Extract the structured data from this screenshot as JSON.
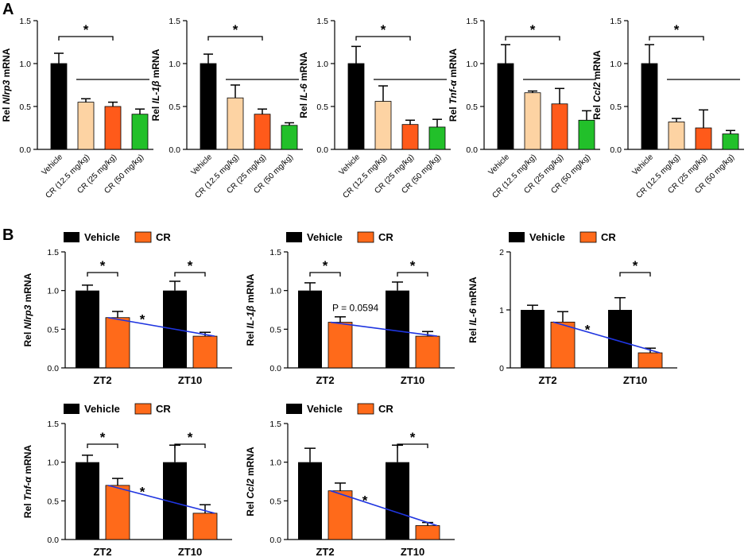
{
  "panels": [
    {
      "letter": "A"
    },
    {
      "letter": "B"
    }
  ],
  "legend": {
    "vehicle_label": "Vehicle",
    "cr_label": "CR"
  },
  "colors": {
    "vehicle": "#000000",
    "cr_12_5": "#FDD3A3",
    "cr_25": "#FF5A1A",
    "cr_50": "#22C02A",
    "cr": "#FF6A1A",
    "trend": "#1F35E0",
    "error": "#000000"
  },
  "chart_data": [
    {
      "type": "bar",
      "panel": "A",
      "ylabel_pre": "Rel ",
      "ylabel_gene": "Nlrp3",
      "ylabel_post": " mRNA",
      "ylim": [
        0,
        1.5
      ],
      "yticks": [
        "0.0",
        "0.5",
        "1.0",
        "1.5"
      ],
      "categories": [
        "Vehicle",
        "CR (12.5 mg/kg)",
        "CR (25 mg/kg)",
        "CR (50 mg/kg)"
      ],
      "values": [
        1.0,
        0.55,
        0.5,
        0.41
      ],
      "errors": [
        0.12,
        0.04,
        0.05,
        0.06
      ],
      "bar_colors": [
        "vehicle",
        "cr_12_5",
        "cr_25",
        "cr_50"
      ],
      "significance": "*"
    },
    {
      "type": "bar",
      "panel": "A",
      "ylabel_pre": "Rel ",
      "ylabel_gene": "IL-1β",
      "ylabel_post": " mRNA",
      "ylim": [
        0,
        1.5
      ],
      "yticks": [
        "0.0",
        "0.5",
        "1.0",
        "1.5"
      ],
      "categories": [
        "Vehicle",
        "CR (12.5 mg/kg)",
        "CR (25 mg/kg)",
        "CR (50 mg/kg)"
      ],
      "values": [
        1.0,
        0.6,
        0.41,
        0.28
      ],
      "errors": [
        0.11,
        0.15,
        0.06,
        0.03
      ],
      "bar_colors": [
        "vehicle",
        "cr_12_5",
        "cr_25",
        "cr_50"
      ],
      "significance": "*"
    },
    {
      "type": "bar",
      "panel": "A",
      "ylabel_pre": "Rel ",
      "ylabel_gene": "IL-6",
      "ylabel_post": " mRNA",
      "ylim": [
        0,
        1.5
      ],
      "yticks": [
        "0.0",
        "0.5",
        "1.0",
        "1.5"
      ],
      "categories": [
        "Vehicle",
        "CR (12.5 mg/kg)",
        "CR (25 mg/kg)",
        "CR (50 mg/kg)"
      ],
      "values": [
        1.0,
        0.56,
        0.29,
        0.26
      ],
      "errors": [
        0.2,
        0.18,
        0.05,
        0.09
      ],
      "bar_colors": [
        "vehicle",
        "cr_12_5",
        "cr_25",
        "cr_50"
      ],
      "significance": "*"
    },
    {
      "type": "bar",
      "panel": "A",
      "ylabel_pre": "Rel ",
      "ylabel_gene": "Tnf-α",
      "ylabel_post": " mRNA",
      "ylim": [
        0,
        1.5
      ],
      "yticks": [
        "0.0",
        "0.5",
        "1.0",
        "1.5"
      ],
      "categories": [
        "Vehicle",
        "CR (12.5 mg/kg)",
        "CR (25 mg/kg)",
        "CR (50 mg/kg)"
      ],
      "values": [
        1.0,
        0.66,
        0.53,
        0.34
      ],
      "errors": [
        0.22,
        0.02,
        0.18,
        0.11
      ],
      "bar_colors": [
        "vehicle",
        "cr_12_5",
        "cr_25",
        "cr_50"
      ],
      "significance": "*"
    },
    {
      "type": "bar",
      "panel": "A",
      "ylabel_pre": "Rel ",
      "ylabel_gene": "Ccl2",
      "ylabel_post": " mRNA",
      "ylim": [
        0,
        1.5
      ],
      "yticks": [
        "0.0",
        "0.5",
        "1.0",
        "1.5"
      ],
      "categories": [
        "Vehicle",
        "CR (12.5 mg/kg)",
        "CR (25 mg/kg)",
        "CR (50 mg/kg)"
      ],
      "values": [
        1.0,
        0.32,
        0.25,
        0.18
      ],
      "errors": [
        0.22,
        0.04,
        0.21,
        0.04
      ],
      "bar_colors": [
        "vehicle",
        "cr_12_5",
        "cr_25",
        "cr_50"
      ],
      "significance": "*"
    },
    {
      "type": "bar",
      "panel": "B",
      "ylabel_pre": "Rel ",
      "ylabel_gene": "Nlrp3",
      "ylabel_post": " mRNA",
      "ylim": [
        0,
        1.5
      ],
      "yticks": [
        "0.0",
        "0.5",
        "1.0",
        "1.5"
      ],
      "categories": [
        "ZT2",
        "ZT10"
      ],
      "series": [
        {
          "name": "Vehicle",
          "values": [
            1.0,
            1.0
          ],
          "errors": [
            0.07,
            0.12
          ]
        },
        {
          "name": "CR",
          "values": [
            0.65,
            0.41
          ],
          "errors": [
            0.08,
            0.05
          ]
        }
      ],
      "group_significance": [
        "*",
        "*"
      ],
      "trend_label": "*"
    },
    {
      "type": "bar",
      "panel": "B",
      "ylabel_pre": "Rel ",
      "ylabel_gene": "IL-1β",
      "ylabel_post": " mRNA",
      "ylim": [
        0,
        1.5
      ],
      "yticks": [
        "0.0",
        "0.5",
        "1.0",
        "1.5"
      ],
      "categories": [
        "ZT2",
        "ZT10"
      ],
      "series": [
        {
          "name": "Vehicle",
          "values": [
            1.0,
            1.0
          ],
          "errors": [
            0.1,
            0.11
          ]
        },
        {
          "name": "CR",
          "values": [
            0.59,
            0.41
          ],
          "errors": [
            0.07,
            0.06
          ]
        }
      ],
      "group_significance": [
        "*",
        "*"
      ],
      "trend_label": "P = 0.0594"
    },
    {
      "type": "bar",
      "panel": "B",
      "ylabel_pre": "Rel ",
      "ylabel_gene": "IL-6",
      "ylabel_post": " mRNA",
      "ylim": [
        0,
        2
      ],
      "yticks": [
        "0",
        "1",
        "2"
      ],
      "categories": [
        "ZT2",
        "ZT10"
      ],
      "series": [
        {
          "name": "Vehicle",
          "values": [
            1.0,
            1.0
          ],
          "errors": [
            0.08,
            0.21
          ]
        },
        {
          "name": "CR",
          "values": [
            0.79,
            0.26
          ],
          "errors": [
            0.18,
            0.08
          ]
        }
      ],
      "group_significance": [
        "",
        "*"
      ],
      "trend_label": "*"
    },
    {
      "type": "bar",
      "panel": "B",
      "ylabel_pre": "Rel ",
      "ylabel_gene": "Tnf-α",
      "ylabel_post": " mRNA",
      "ylim": [
        0,
        1.5
      ],
      "yticks": [
        "0.0",
        "0.5",
        "1.0",
        "1.5"
      ],
      "categories": [
        "ZT2",
        "ZT10"
      ],
      "series": [
        {
          "name": "Vehicle",
          "values": [
            1.0,
            1.0
          ],
          "errors": [
            0.09,
            0.22
          ]
        },
        {
          "name": "CR",
          "values": [
            0.7,
            0.34
          ],
          "errors": [
            0.09,
            0.11
          ]
        }
      ],
      "group_significance": [
        "*",
        "*"
      ],
      "trend_label": "*"
    },
    {
      "type": "bar",
      "panel": "B",
      "ylabel_pre": "Rel ",
      "ylabel_gene": "Ccl2",
      "ylabel_post": " mRNA",
      "ylim": [
        0,
        1.5
      ],
      "yticks": [
        "0.0",
        "0.5",
        "1.0",
        "1.5"
      ],
      "categories": [
        "ZT2",
        "ZT10"
      ],
      "series": [
        {
          "name": "Vehicle",
          "values": [
            1.0,
            1.0
          ],
          "errors": [
            0.18,
            0.22
          ]
        },
        {
          "name": "CR",
          "values": [
            0.63,
            0.18
          ],
          "errors": [
            0.1,
            0.04
          ]
        }
      ],
      "group_significance": [
        "",
        "*"
      ],
      "trend_label": "*"
    }
  ]
}
